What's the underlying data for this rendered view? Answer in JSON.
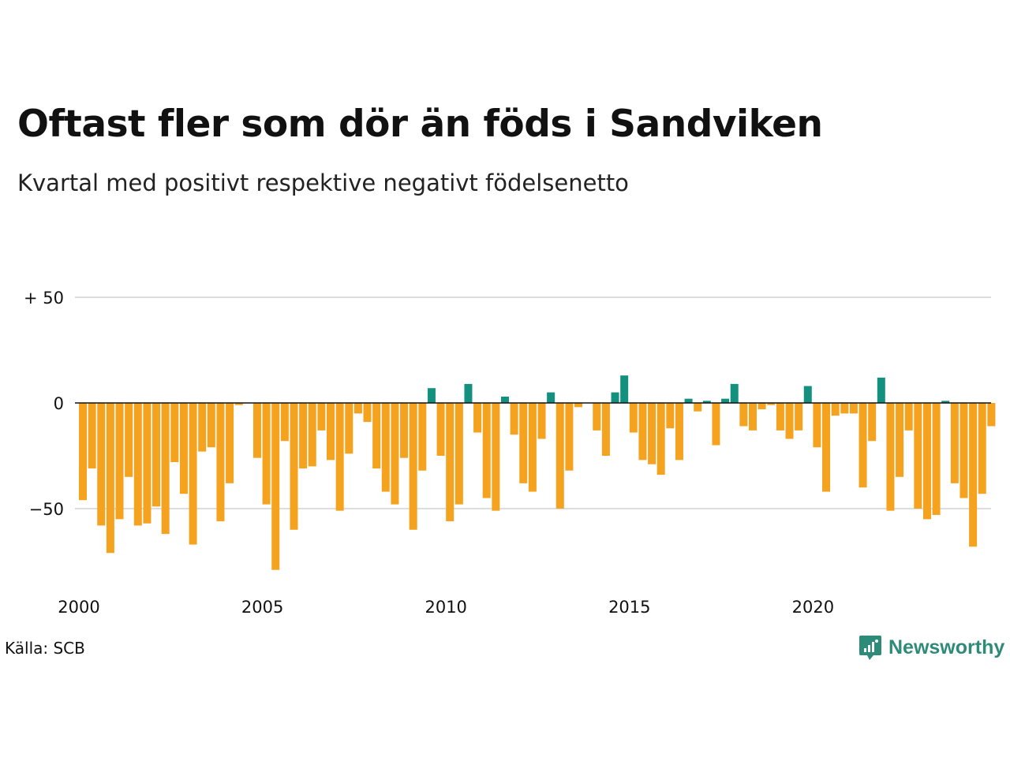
{
  "colors": {
    "positive": "#14907e",
    "negative": "#f5a21e",
    "grid": "#dddddd",
    "zero_line": "#111111",
    "logo": "#2e8b7a"
  },
  "source": "Källa: SCB",
  "logo": {
    "text": "Newsworthy",
    "icon": "chart-bubble-icon"
  },
  "chart_data": {
    "type": "bar",
    "title": "Oftast fler som dör än föds i Sandviken",
    "subtitle": "Kvartal med positivt respektive negativt födelsenetto",
    "xlabel": "",
    "ylabel": "",
    "ylim": [
      -85,
      55
    ],
    "yticks": [
      {
        "value": 50,
        "label": "+ 50"
      },
      {
        "value": 0,
        "label": "0"
      },
      {
        "value": -50,
        "label": "−50"
      }
    ],
    "xticks": [
      {
        "value": 2000,
        "label": "2000"
      },
      {
        "value": 2005,
        "label": "2005"
      },
      {
        "value": 2010,
        "label": "2010"
      },
      {
        "value": 2015,
        "label": "2015"
      },
      {
        "value": 2020,
        "label": "2020"
      }
    ],
    "x_start": "2000 K1",
    "x_end": "2024 K4",
    "grid": true,
    "values": [
      -46,
      -31,
      -58,
      -71,
      -55,
      -35,
      -58,
      -57,
      -49,
      -62,
      -28,
      -43,
      -67,
      -23,
      -21,
      -56,
      -38,
      -1,
      0,
      -26,
      -48,
      -79,
      -18,
      -60,
      -31,
      -30,
      -13,
      -27,
      -51,
      -24,
      -5,
      -9,
      -31,
      -42,
      -48,
      -26,
      -60,
      -32,
      7,
      -25,
      -56,
      -48,
      9,
      -14,
      -45,
      -51,
      3,
      -15,
      -38,
      -42,
      -17,
      5,
      -50,
      -32,
      -2,
      0,
      -13,
      -25,
      5,
      13,
      -14,
      -27,
      -29,
      -34,
      -12,
      -27,
      2,
      -4,
      1,
      -20,
      2,
      9,
      -11,
      -13,
      -3,
      -1,
      -13,
      -17,
      -13,
      8,
      -21,
      -42,
      -6,
      -5,
      -5,
      -40,
      -18,
      12,
      -51,
      -35,
      -13,
      -50,
      -55,
      -53,
      1,
      -38,
      -45,
      -68,
      -43,
      -11
    ]
  }
}
